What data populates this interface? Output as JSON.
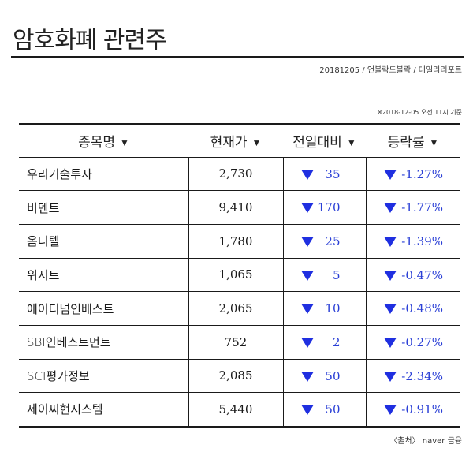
{
  "title": "암호화폐 관련주",
  "subline": "20181205 / 언블락드블락 / 데일리리포트",
  "basis": "※2018-12-05 오전 11시 기준",
  "headers": {
    "name": "종목명",
    "price": "현재가",
    "change": "전일대비",
    "rate": "등락률",
    "sort_arrow": "▼"
  },
  "rows": [
    {
      "name": "우리기술투자",
      "price": "2,730",
      "change": "35",
      "rate": "-1.27%"
    },
    {
      "name": "비덴트",
      "price": "9,410",
      "change": "170",
      "rate": "-1.77%"
    },
    {
      "name": "옴니텔",
      "price": "1,780",
      "change": "25",
      "rate": "-1.39%"
    },
    {
      "name": "위지트",
      "price": "1,065",
      "change": "5",
      "rate": "-0.47%"
    },
    {
      "name": "에이티넘인베스트",
      "price": "2,065",
      "change": "10",
      "rate": "-0.48%"
    },
    {
      "name": "SBI인베스트먼트",
      "price": "752",
      "change": "2",
      "rate": "-0.27%"
    },
    {
      "name": "SCI평가정보",
      "price": "2,085",
      "change": "50",
      "rate": "-2.34%"
    },
    {
      "name": "제이씨현시스템",
      "price": "5,440",
      "change": "50",
      "rate": "-0.91%"
    }
  ],
  "source": "〈출처〉 naver 금융",
  "colors": {
    "down": "#1f2fe0",
    "text": "#1a1a1a"
  }
}
